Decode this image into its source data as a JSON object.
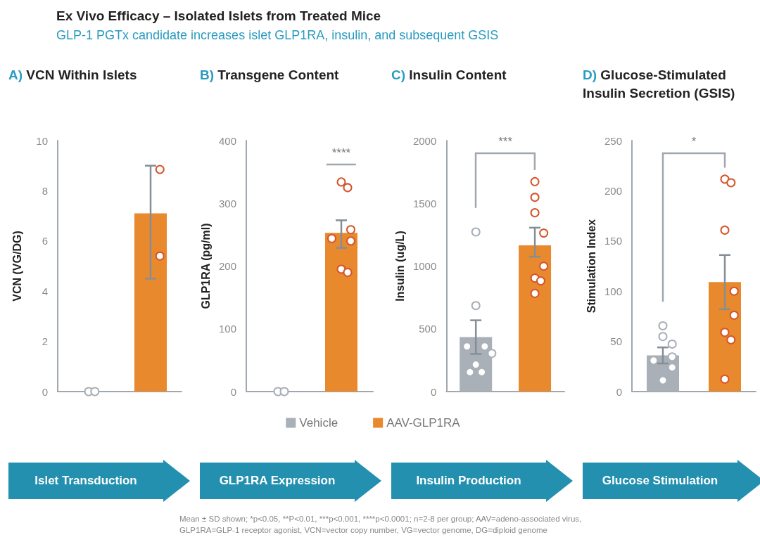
{
  "chart_data": [
    {
      "type": "bar",
      "title": "A) VCN Within Islets",
      "ylabel": "VCN (VG/DG)",
      "categories": [
        null,
        null
      ],
      "ylim": [
        0,
        10
      ],
      "yticks": [
        0,
        2,
        4,
        6,
        8,
        10
      ],
      "tick_labels": "y",
      "marker": "circle",
      "annotations": [
        "Ex Vivo Efficacy – Isolated Islets from Treated Mice",
        "GLP-1 PGTx candidate increases islet GLP1RA, insulin, and subsequent GSIS",
        "Mean ± SD shown; *p<0.05, **P<0.01, ***p<0.001, ****p<0.0001; n=2-8 per group; AAV=adeno-associated virus, GLP1RA=GLP-1 receptor agonist, VCN=vector copy number, VG=vector genome, DG=diploid genome",
        "Islet Transduction"
      ],
      "series": [
        {
          "color": "#a9b0b8",
          "values": [
            0,
            null
          ]
        },
        {
          "color": "#e8892e",
          "values": [
            null,
            7.1
          ],
          "errors": [
            null,
            [
              4.5,
              9
            ]
          ]
        },
        {
          "type": "scatter",
          "colors": [
            "#a9b0b8",
            "#d5562b"
          ],
          "values": [
            0,
            8.85
          ]
        },
        {
          "type": "scatter",
          "colors": [
            "#a9b0b8",
            "#d5562b"
          ],
          "values": [
            0,
            5.4
          ]
        }
      ]
    },
    {
      "type": "bar",
      "title": "B) Transgene Content",
      "ylabel": "GLP1RA (pg/ml)",
      "categories": [
        null,
        null
      ],
      "ylim": [
        0,
        400
      ],
      "yticks": [
        0,
        100,
        200,
        300,
        400
      ],
      "tick_labels": "y",
      "marker": "circle",
      "legend": "bottom",
      "annotations": [
        "****",
        "GLP1RA Expression"
      ],
      "series": [
        {
          "name": "Vehicle",
          "color": "#a9b0b8",
          "values": [
            0,
            null
          ]
        },
        {
          "name": "AAV-GLP1RA",
          "color": "#e8892e",
          "values": [
            null,
            253
          ],
          "errors": [
            null,
            [
              229,
              273
            ]
          ]
        },
        {
          "type": "scatter",
          "colors": [
            "#a9b0b8",
            "#d5562b"
          ],
          "values": [
            0,
            334
          ]
        },
        {
          "type": "scatter",
          "colors": [
            "#a9b0b8",
            "#d5562b"
          ],
          "values": [
            0,
            325
          ]
        },
        {
          "type": "scatter",
          "colors": [
            "#a9b0b8",
            "#d5562b"
          ],
          "values": [
            null,
            258
          ]
        },
        {
          "type": "scatter",
          "colors": [
            "#a9b0b8",
            "#d5562b"
          ],
          "values": [
            null,
            244
          ]
        },
        {
          "type": "scatter",
          "colors": [
            "#a9b0b8",
            "#d5562b"
          ],
          "values": [
            null,
            240
          ]
        },
        {
          "type": "scatter",
          "colors": [
            "#a9b0b8",
            "#d5562b"
          ],
          "values": [
            null,
            195
          ]
        },
        {
          "type": "scatter",
          "colors": [
            "#a9b0b8",
            "#d5562b"
          ],
          "values": [
            null,
            190
          ]
        }
      ]
    },
    {
      "type": "bar",
      "title": "C) Insulin Content",
      "ylabel": "Insulin (ug/L)",
      "categories": [
        null,
        null
      ],
      "ylim": [
        0,
        2000
      ],
      "yticks": [
        0,
        500,
        1000,
        1500,
        2000
      ],
      "tick_labels": "y",
      "marker": "circle",
      "annotations": [
        "***",
        "Insulin Production"
      ],
      "series": [
        {
          "color": "#a9b0b8",
          "values": [
            434,
            null
          ],
          "errors": [
            134,
            null
          ]
        },
        {
          "color": "#e8892e",
          "values": [
            null,
            1165
          ],
          "errors": [
            null,
            [
              1075,
              1306
            ]
          ]
        },
        {
          "type": "scatter",
          "colors": [
            "#a9b0b8",
            "#d5562b"
          ],
          "values": [
            1272,
            1673
          ]
        },
        {
          "type": "scatter",
          "colors": [
            "#a9b0b8",
            "#d5562b"
          ],
          "values": [
            685,
            1548
          ]
        },
        {
          "type": "scatter",
          "colors": [
            "#a9b0b8",
            "#d5562b"
          ],
          "values": [
            360,
            1425
          ]
        },
        {
          "type": "scatter",
          "colors": [
            "#a9b0b8",
            "#d5562b"
          ],
          "values": [
            360,
            1263
          ]
        },
        {
          "type": "scatter",
          "colors": [
            "#a9b0b8",
            "#d5562b"
          ],
          "values": [
            304,
            999
          ]
        },
        {
          "type": "scatter",
          "colors": [
            "#a9b0b8",
            "#d5562b"
          ],
          "values": [
            215,
            904
          ]
        },
        {
          "type": "scatter",
          "colors": [
            "#a9b0b8",
            "#d5562b"
          ],
          "values": [
            155,
            882
          ]
        },
        {
          "type": "scatter",
          "colors": [
            "#a9b0b8",
            "#d5562b"
          ],
          "values": [
            155,
            782
          ]
        }
      ]
    },
    {
      "type": "bar",
      "title": "D) Glucose-Stimulated Insulin Secretion (GSIS)",
      "ylabel": "Stimulation Index",
      "categories": [
        null,
        null
      ],
      "ylim": [
        0,
        250
      ],
      "yticks": [
        0,
        50,
        100,
        150,
        200,
        250
      ],
      "tick_labels": "y",
      "marker": "circle",
      "annotations": [
        "*",
        "Glucose Stimulation"
      ],
      "series": [
        {
          "color": "#a9b0b8",
          "values": [
            36,
            null
          ],
          "errors": [
            8,
            null
          ]
        },
        {
          "color": "#e8892e",
          "values": [
            null,
            109
          ],
          "errors": [
            null,
            [
              82,
              136
            ]
          ]
        },
        {
          "type": "scatter",
          "colors": [
            "#a9b0b8",
            "#d5562b"
          ],
          "values": [
            65.5,
            211.6
          ]
        },
        {
          "type": "scatter",
          "colors": [
            "#a9b0b8",
            "#d5562b"
          ],
          "values": [
            54.8,
            208
          ]
        },
        {
          "type": "scatter",
          "colors": [
            "#a9b0b8",
            "#d5562b"
          ],
          "values": [
            47.3,
            160.8
          ]
        },
        {
          "type": "scatter",
          "colors": [
            "#a9b0b8",
            "#d5562b"
          ],
          "values": [
            34.5,
            100
          ]
        },
        {
          "type": "scatter",
          "colors": [
            "#a9b0b8",
            "#d5562b"
          ],
          "values": [
            31,
            76
          ]
        },
        {
          "type": "scatter",
          "colors": [
            "#a9b0b8",
            "#d5562b"
          ],
          "values": [
            24,
            59
          ]
        },
        {
          "type": "scatter",
          "colors": [
            "#a9b0b8",
            "#d5562b"
          ],
          "values": [
            11.2,
            51.5
          ]
        },
        {
          "type": "scatter",
          "colors": [
            "#a9b0b8",
            "#d5562b"
          ],
          "values": [
            null,
            12.4
          ]
        }
      ]
    }
  ]
}
